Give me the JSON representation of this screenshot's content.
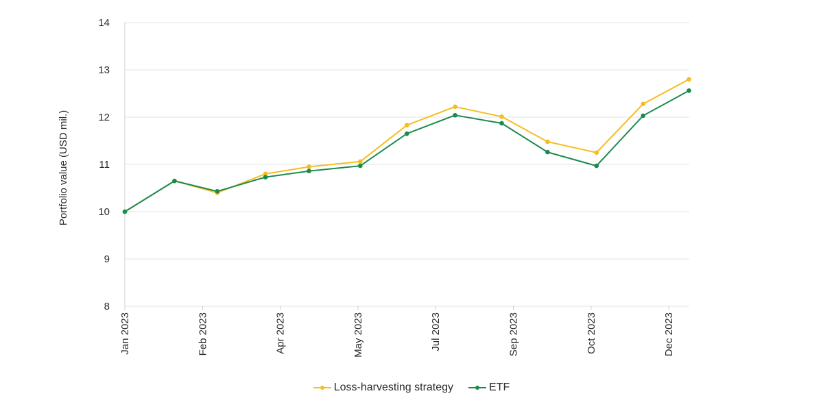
{
  "chart_data": {
    "type": "line",
    "title": "",
    "xlabel": "",
    "ylabel": "Portfolio value (USD mil.)",
    "ylim": [
      8,
      14
    ],
    "yticks": [
      8,
      9,
      10,
      11,
      12,
      13,
      14
    ],
    "xlim": [
      0,
      7.27
    ],
    "xticks": [
      {
        "pos": 0,
        "label": "Jan 2023"
      },
      {
        "pos": 1,
        "label": "Feb 2023"
      },
      {
        "pos": 2,
        "label": "Apr 2023"
      },
      {
        "pos": 3,
        "label": "May 2023"
      },
      {
        "pos": 4,
        "label": "Jul 2023"
      },
      {
        "pos": 5,
        "label": "Sep 2023"
      },
      {
        "pos": 6,
        "label": "Oct 2023"
      },
      {
        "pos": 7,
        "label": "Dec 2023"
      }
    ],
    "grid": true,
    "legend_position": "bottom-center",
    "x": [
      0,
      0.64,
      1.19,
      1.81,
      2.37,
      3.03,
      3.63,
      4.25,
      4.85,
      5.44,
      6.07,
      6.67,
      7.26
    ],
    "series": [
      {
        "name": "Loss-harvesting strategy",
        "color": "#F5BD1F",
        "values": [
          10.0,
          10.65,
          10.4,
          10.8,
          10.95,
          11.06,
          11.83,
          12.22,
          12.01,
          11.48,
          11.25,
          12.28,
          12.8
        ]
      },
      {
        "name": "ETF",
        "color": "#1B8A50",
        "values": [
          10.0,
          10.65,
          10.43,
          10.73,
          10.86,
          10.97,
          11.65,
          12.04,
          11.87,
          11.26,
          10.97,
          12.03,
          12.56
        ]
      }
    ]
  }
}
